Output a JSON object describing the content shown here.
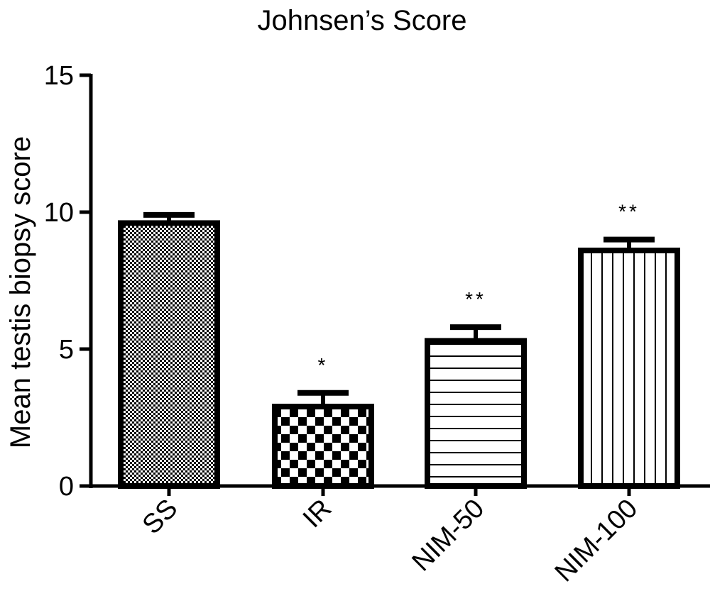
{
  "chart_data": {
    "type": "bar",
    "title": "Johnsen’s Score",
    "xlabel": "",
    "ylabel": "Mean testis biopsy score",
    "ylim": [
      0,
      15
    ],
    "yticks": [
      0,
      5,
      10,
      15
    ],
    "ytick_labels": [
      "0",
      "5",
      "10",
      "15"
    ],
    "categories": [
      "SS",
      "IR",
      "NIM-50",
      "NIM-100"
    ],
    "values": [
      9.6,
      2.9,
      5.3,
      8.6
    ],
    "error_bars": [
      0.3,
      0.5,
      0.5,
      0.4
    ],
    "annotations": [
      "",
      "*",
      "**",
      "**"
    ],
    "patterns": [
      "fine-checker",
      "coarse-checker",
      "horizontal-lines",
      "vertical-lines"
    ],
    "grid": false,
    "colors": {
      "stroke": "#000000",
      "fill": "#ffffff"
    }
  }
}
